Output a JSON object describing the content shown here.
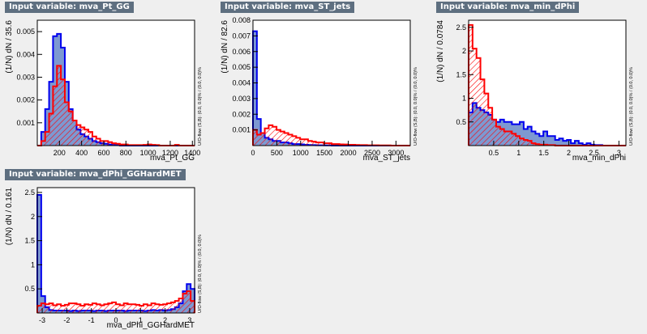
{
  "colors": {
    "background": "#efefef",
    "signal": "#0000ee",
    "signal_fill": "#7d99d1",
    "background_hist": "#ff0000",
    "tag_bg": "#5e6f80"
  },
  "panels": [
    {
      "title": "Input variable: mva_Pt_GG",
      "ylabel": "(1/N)  dN / 35.6",
      "xlabel": "mva_Pt_GG",
      "overflow": "U/O-flow (S,B): (0.0, 0.0)% / (0.0, 0.0)%"
    },
    {
      "title": "Input variable: mva_ST_jets",
      "ylabel": "(1/N)  dN / 82.6",
      "xlabel": "mva_ST_jets",
      "overflow": "U/O-flow (S,B): (0.0, 0.0)% / (0.0, 0.0)%"
    },
    {
      "title": "Input variable: mva_min_dPhi",
      "ylabel": "(1/N)  dN / 0.0784",
      "xlabel": "mva_min_dPhi",
      "overflow": "U/O-flow (S,B): (0.0, 0.0)% / (0.0, 0.0)%"
    },
    {
      "title": "Input variable: mva_dPhi_GGHardMET",
      "ylabel": "(1/N)  dN / 0.161",
      "xlabel": "mva_dPhi_GGHardMET",
      "overflow": "U/O-flow (S,B): (0.0, 0.0)% / (0.0, 0.0)%"
    }
  ],
  "chart_data": [
    {
      "type": "histogram",
      "x_range": [
        0,
        1420
      ],
      "ylim": [
        0,
        0.0055
      ],
      "xticks": [
        200,
        400,
        600,
        800,
        1000,
        1200,
        1400
      ],
      "yticks": [
        0.001,
        0.002,
        0.003,
        0.004,
        0.005
      ],
      "xtick_labels": [
        "200",
        "400",
        "600",
        "800",
        "1000",
        "1200",
        "1400"
      ],
      "ytick_labels": [
        "0.001",
        "0.002",
        "0.003",
        "0.004",
        "0.005"
      ],
      "series": [
        {
          "values": [
            0,
            0.0006,
            0.0016,
            0.0028,
            0.0048,
            0.0049,
            0.0043,
            0.0028,
            0.0016,
            0.0011,
            0.0007,
            0.0005,
            0.0004,
            0.0003,
            0.0002,
            0.00015,
            0.0001,
            8e-05,
            5e-05,
            3e-05,
            2e-05,
            0,
            0,
            0,
            0,
            0,
            0,
            0,
            0,
            0,
            0,
            0,
            0,
            0,
            0,
            0,
            0,
            0,
            0,
            0
          ]
        },
        {
          "values": [
            0,
            0.0002,
            0.0006,
            0.0014,
            0.0026,
            0.0035,
            0.0029,
            0.0019,
            0.0015,
            0.0011,
            0.0009,
            0.0008,
            0.0007,
            0.0006,
            0.0004,
            0.0003,
            0.0002,
            0.0002,
            0.00015,
            0.0001,
            8e-05,
            5e-05,
            5e-05,
            2e-05,
            2e-05,
            2e-05,
            2e-05,
            3e-05,
            5e-05,
            3e-05,
            2e-05,
            0,
            0,
            0,
            0,
            3e-05,
            0,
            0,
            0,
            0
          ]
        }
      ]
    },
    {
      "type": "histogram",
      "x_range": [
        0,
        3300
      ],
      "ylim": [
        0,
        0.008
      ],
      "xticks": [
        0,
        500,
        1000,
        1500,
        2000,
        2500,
        3000
      ],
      "yticks": [
        0.001,
        0.002,
        0.003,
        0.004,
        0.005,
        0.006,
        0.007,
        0.008
      ],
      "xtick_labels": [
        "0",
        "500",
        "1000",
        "1500",
        "2000",
        "2500",
        "3000"
      ],
      "ytick_labels": [
        "0.001",
        "0.002",
        "0.003",
        "0.004",
        "0.005",
        "0.006",
        "0.007",
        "0.008"
      ],
      "series": [
        {
          "values": [
            0.0073,
            0.0017,
            0.0008,
            0.0005,
            0.0004,
            0.0003,
            0.0003,
            0.0002,
            0.0002,
            0.00015,
            0.0001,
            0.0001,
            8e-05,
            5e-05,
            4e-05,
            3e-05,
            2e-05,
            2e-05,
            1e-05,
            1e-05,
            0,
            0,
            0,
            0,
            0,
            0,
            0,
            0,
            0,
            0,
            0,
            0,
            0,
            0,
            0,
            0,
            0,
            0,
            0,
            0
          ]
        },
        {
          "values": [
            0.001,
            0.0007,
            0.0008,
            0.0011,
            0.0013,
            0.0012,
            0.001,
            0.0009,
            0.0008,
            0.0007,
            0.0006,
            0.0005,
            0.0004,
            0.0004,
            0.0003,
            0.00025,
            0.0002,
            0.0002,
            0.00015,
            0.00015,
            0.0001,
            0.0001,
            8e-05,
            7e-05,
            5e-05,
            5e-05,
            4e-05,
            3e-05,
            3e-05,
            2e-05,
            2e-05,
            2e-05,
            1e-05,
            1e-05,
            1e-05,
            0,
            0,
            0,
            0,
            0
          ]
        }
      ]
    },
    {
      "type": "histogram",
      "x_range": [
        0,
        3.14
      ],
      "ylim": [
        0,
        2.65
      ],
      "xticks": [
        0.5,
        1,
        1.5,
        2,
        2.5,
        3
      ],
      "yticks": [
        0.5,
        1,
        1.5,
        2,
        2.5
      ],
      "xtick_labels": [
        "0.5",
        "1",
        "1.5",
        "2",
        "2.5",
        "3"
      ],
      "ytick_labels": [
        "0.5",
        "1",
        "1.5",
        "2",
        "2.5"
      ],
      "series": [
        {
          "values": [
            0.7,
            0.9,
            0.8,
            0.75,
            0.7,
            0.65,
            0.55,
            0.5,
            0.55,
            0.5,
            0.5,
            0.45,
            0.45,
            0.5,
            0.35,
            0.4,
            0.3,
            0.25,
            0.2,
            0.3,
            0.2,
            0.2,
            0.12,
            0.15,
            0.1,
            0.12,
            0.05,
            0.1,
            0.05,
            0.02,
            0.05,
            0.02,
            0.01,
            0.01,
            0,
            0,
            0,
            0,
            0,
            0
          ]
        },
        {
          "values": [
            2.55,
            2.05,
            1.85,
            1.4,
            1.1,
            0.8,
            0.55,
            0.4,
            0.35,
            0.3,
            0.3,
            0.25,
            0.2,
            0.15,
            0.12,
            0.1,
            0.05,
            0.03,
            0.02,
            0.02,
            0.01,
            0.01,
            0,
            0,
            0,
            0,
            0,
            0,
            0,
            0,
            0,
            0,
            0,
            0,
            0,
            0,
            0,
            0,
            0,
            0
          ]
        }
      ]
    },
    {
      "type": "histogram",
      "x_range": [
        -3.2,
        3.2
      ],
      "ylim": [
        0,
        2.6
      ],
      "xticks": [
        -3,
        -2,
        -1,
        0,
        1,
        2,
        3
      ],
      "yticks": [
        0.5,
        1,
        1.5,
        2,
        2.5
      ],
      "xtick_labels": [
        "-3",
        "-2",
        "-1",
        "0",
        "1",
        "2",
        "3"
      ],
      "ytick_labels": [
        "0.5",
        "1",
        "1.5",
        "2",
        "2.5"
      ],
      "series": [
        {
          "values": [
            2.45,
            0.35,
            0.12,
            0.06,
            0.05,
            0.05,
            0.05,
            0.05,
            0.04,
            0.05,
            0.04,
            0.05,
            0.05,
            0.05,
            0.04,
            0.05,
            0.05,
            0.04,
            0.05,
            0.05,
            0.05,
            0.05,
            0.04,
            0.05,
            0.05,
            0.05,
            0.05,
            0.04,
            0.05,
            0.06,
            0.05,
            0.06,
            0.05,
            0.06,
            0.08,
            0.12,
            0.2,
            0.45,
            0.6,
            0.5
          ]
        },
        {
          "values": [
            0.15,
            0.2,
            0.18,
            0.2,
            0.16,
            0.18,
            0.15,
            0.17,
            0.2,
            0.2,
            0.18,
            0.15,
            0.18,
            0.17,
            0.2,
            0.18,
            0.16,
            0.18,
            0.2,
            0.22,
            0.18,
            0.16,
            0.2,
            0.18,
            0.18,
            0.17,
            0.15,
            0.18,
            0.16,
            0.2,
            0.18,
            0.17,
            0.18,
            0.2,
            0.22,
            0.25,
            0.3,
            0.4,
            0.45,
            0.25
          ]
        }
      ]
    }
  ]
}
